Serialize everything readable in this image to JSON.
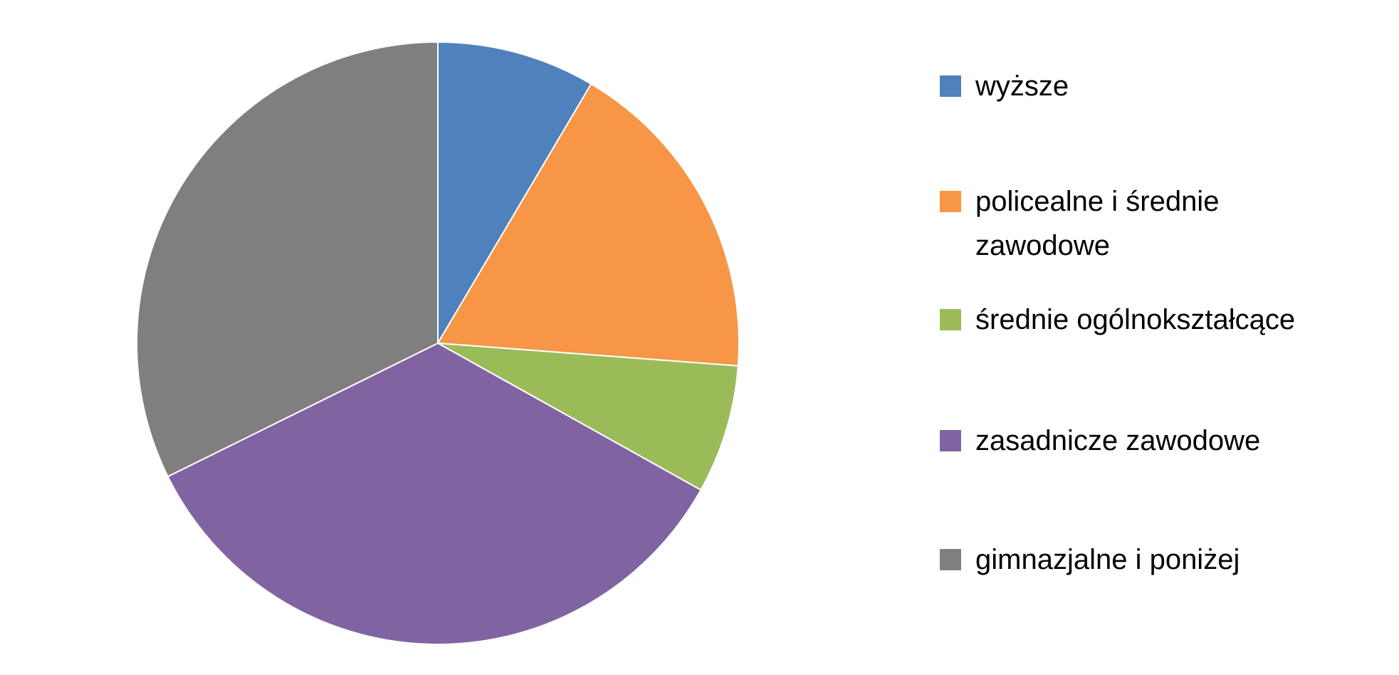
{
  "chart_data": {
    "type": "pie",
    "title": "",
    "legend_placement": "right",
    "start_angle_deg": 0,
    "direction": "clockwise",
    "slices": [
      {
        "label": "wyższe",
        "value": 8.5,
        "color": "#4F81BD"
      },
      {
        "label": "policealne i średnie zawodowe",
        "value": 17.7,
        "color": "#F79646"
      },
      {
        "label": "średnie ogólnokształcące",
        "value": 6.9,
        "color": "#9BBB59"
      },
      {
        "label": "zasadnicze zawodowe",
        "value": 34.6,
        "color": "#8064A2"
      },
      {
        "label": "gimnazjalne i poniżej",
        "value": 32.3,
        "color": "#7F7F7F"
      }
    ]
  }
}
